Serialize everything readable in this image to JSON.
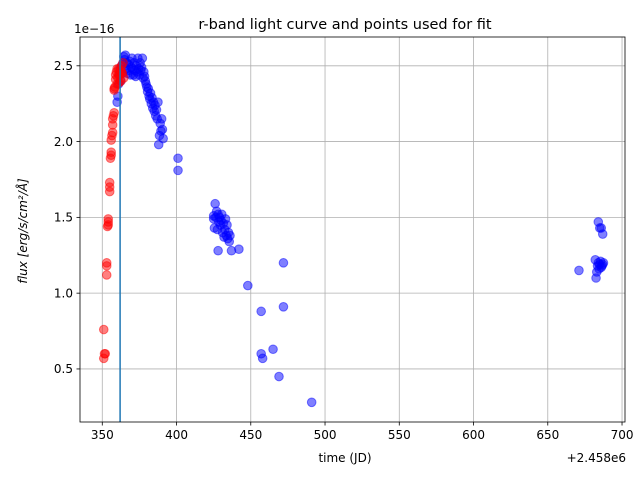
{
  "chart_data": {
    "type": "scatter",
    "title": "r-band light curve and points used for fit",
    "xlabel": "time (JD)",
    "ylabel": "flux [erg/s/cm²/Å]",
    "x_offset_text": "+2.458e6",
    "y_scale_text": "1e−16",
    "xlim": [
      335,
      702
    ],
    "ylim": [
      0.15,
      2.69
    ],
    "x_ticks": [
      350,
      400,
      450,
      500,
      550,
      600,
      650,
      700
    ],
    "y_ticks": [
      0.5,
      1.0,
      1.5,
      2.0,
      2.5
    ],
    "y_tick_labels": [
      "0.5",
      "1.0",
      "1.5",
      "2.0",
      "2.5"
    ],
    "grid": true,
    "vline_x": 362,
    "series": [
      {
        "color": "#0000ff",
        "alpha": 0.5,
        "x": [
          360,
          360.5,
          361,
          361.5,
          362,
          362.5,
          363,
          363.5,
          364,
          364.5,
          365,
          365.5,
          366,
          366.5,
          367,
          367.5,
          368,
          368.5,
          369,
          369.5,
          370,
          370.5,
          371,
          371.5,
          372,
          372.5,
          373,
          373.5,
          374,
          374.5,
          375,
          375.5,
          376,
          376.5,
          377,
          377.5,
          378,
          378.5,
          379,
          379.5,
          380,
          380.5,
          381,
          381.5,
          382,
          382.5,
          383,
          383.5,
          384,
          384.5,
          385,
          385.5,
          386,
          386.5,
          387,
          387.5,
          388,
          388.5,
          389,
          389.5,
          390,
          390.5,
          391,
          401,
          401,
          425,
          425,
          425.5,
          426,
          426.5,
          427,
          427.5,
          428,
          428.5,
          429,
          429.5,
          430,
          430.5,
          431,
          431.5,
          432,
          432.5,
          433,
          433.5,
          434,
          434.5,
          435,
          435.5,
          436,
          428,
          437,
          442,
          448,
          457,
          457,
          458,
          465,
          469,
          472,
          472,
          491,
          671,
          682,
          682.5,
          683,
          683.5,
          684,
          684.5,
          685,
          685.5,
          686,
          686.5,
          687,
          687.5,
          684,
          685,
          686,
          687
        ],
        "y": [
          2.26,
          2.3,
          2.38,
          2.44,
          2.48,
          2.4,
          2.5,
          2.45,
          2.52,
          2.56,
          2.54,
          2.57,
          2.48,
          2.52,
          2.45,
          2.51,
          2.47,
          2.53,
          2.44,
          2.49,
          2.55,
          2.48,
          2.44,
          2.52,
          2.47,
          2.43,
          2.5,
          2.46,
          2.55,
          2.48,
          2.44,
          2.52,
          2.47,
          2.49,
          2.55,
          2.42,
          2.46,
          2.43,
          2.4,
          2.38,
          2.36,
          2.33,
          2.35,
          2.3,
          2.28,
          2.32,
          2.25,
          2.29,
          2.22,
          2.26,
          2.2,
          2.24,
          2.17,
          2.21,
          2.15,
          2.26,
          1.98,
          2.04,
          2.12,
          2.07,
          2.15,
          2.08,
          2.02,
          1.89,
          1.81,
          1.51,
          1.49,
          1.43,
          1.59,
          1.5,
          1.54,
          1.42,
          1.52,
          1.47,
          1.5,
          1.45,
          1.48,
          1.52,
          1.4,
          1.46,
          1.37,
          1.42,
          1.49,
          1.38,
          1.45,
          1.36,
          1.4,
          1.34,
          1.38,
          1.28,
          1.28,
          1.29,
          1.05,
          0.88,
          0.6,
          0.57,
          0.63,
          0.45,
          1.2,
          0.91,
          0.28,
          1.15,
          1.22,
          1.1,
          1.14,
          1.18,
          1.2,
          1.16,
          1.19,
          1.21,
          1.17,
          1.18,
          1.19,
          1.2,
          1.47,
          1.43,
          1.43,
          1.39
        ]
      },
      {
        "color": "#ff0000",
        "alpha": 0.5,
        "x": [
          351,
          351,
          351.5,
          352,
          353,
          353,
          353,
          353.5,
          354,
          354,
          354,
          355,
          355,
          355,
          355.5,
          356,
          356,
          356,
          356.5,
          357,
          357,
          357,
          357.5,
          358,
          358,
          358,
          358.5,
          359,
          359,
          359.5,
          360,
          360,
          360.5,
          361,
          361,
          361.5,
          362,
          362,
          362.5,
          363,
          363,
          363.5,
          364,
          364.5
        ],
        "y": [
          0.76,
          0.57,
          0.6,
          0.6,
          1.12,
          1.18,
          1.2,
          1.44,
          1.45,
          1.47,
          1.49,
          1.67,
          1.7,
          1.73,
          1.89,
          1.91,
          1.93,
          2.01,
          2.04,
          2.06,
          2.11,
          2.15,
          2.17,
          2.19,
          2.34,
          2.35,
          2.36,
          2.41,
          2.44,
          2.46,
          2.38,
          2.48,
          2.42,
          2.44,
          2.48,
          2.39,
          2.44,
          2.47,
          2.4,
          2.46,
          2.5,
          2.45,
          2.52,
          2.42
        ]
      }
    ]
  }
}
